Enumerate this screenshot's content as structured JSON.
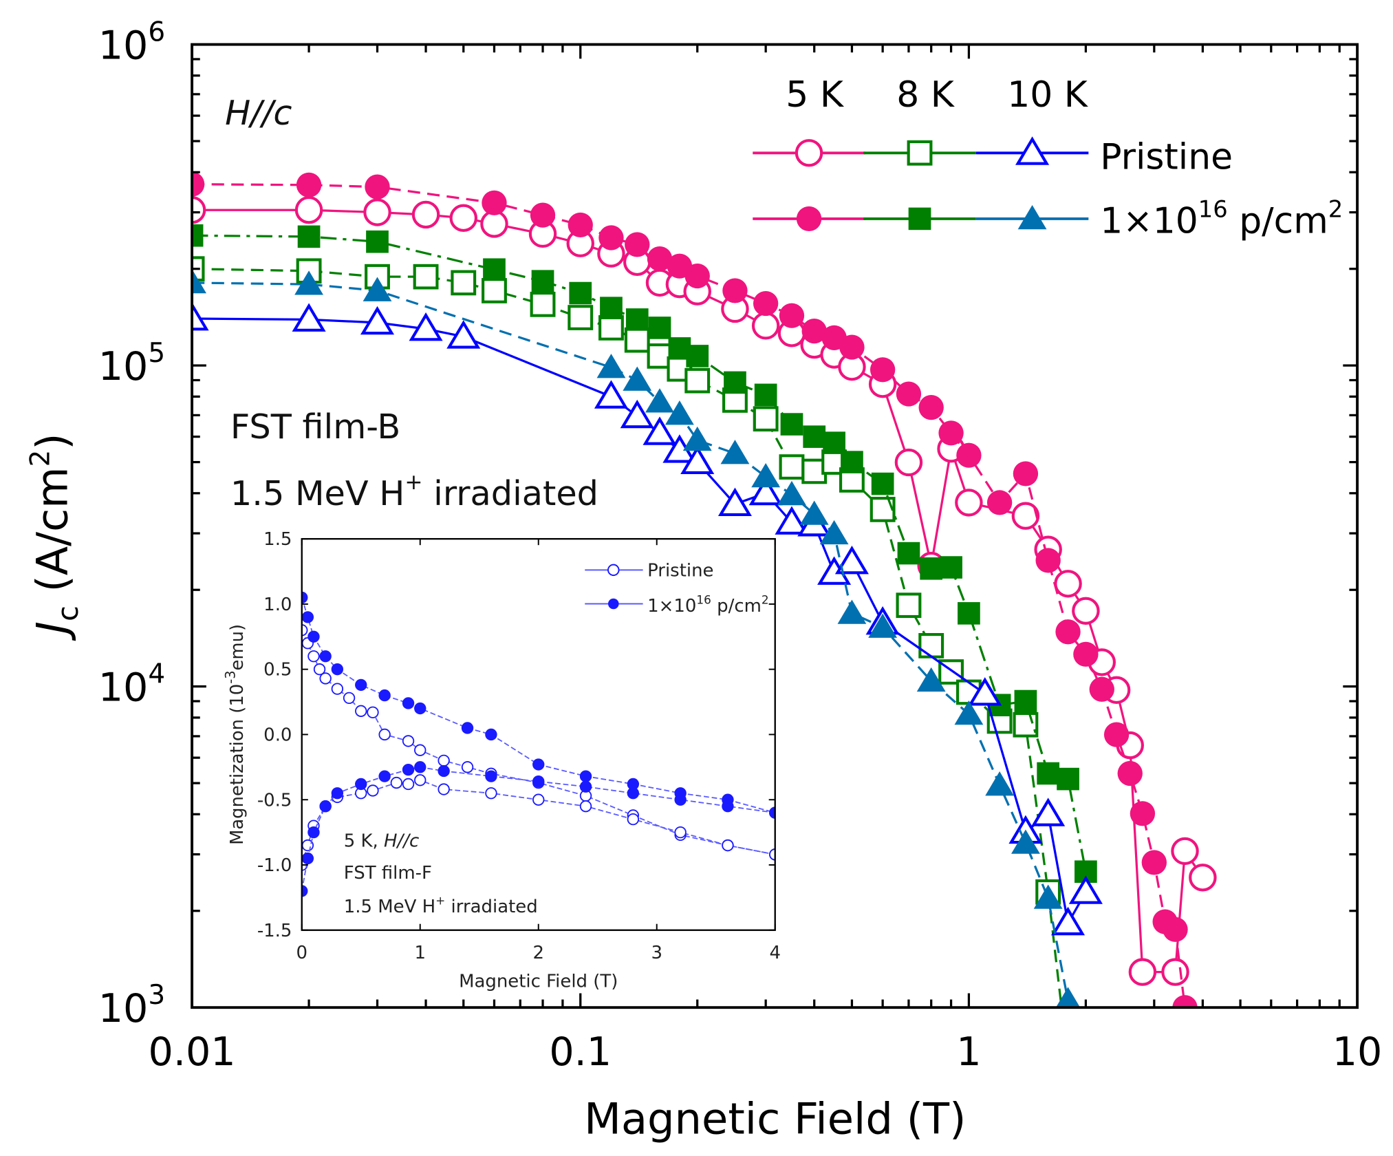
{
  "chart_data": {
    "type": "scatter",
    "main": {
      "xlabel": "Magnetic Field (T)",
      "ylabel_main": "J",
      "ylabel_sub": "c",
      "ylabel_unit": " (A/cm",
      "ylabel_unit_sup": "2",
      "ylabel_close": ")",
      "xscale": "log",
      "yscale": "log",
      "xlim": [
        0.01,
        10
      ],
      "ylim": [
        1000,
        1000000
      ],
      "xticks": [
        "0.01",
        "0.1",
        "1",
        "10"
      ],
      "yticks": [
        {
          "base": "10",
          "exp": "3"
        },
        {
          "base": "10",
          "exp": "4"
        },
        {
          "base": "10",
          "exp": "5"
        },
        {
          "base": "10",
          "exp": "6"
        }
      ],
      "legend": {
        "placement": "top-right",
        "columns": [
          "5 K",
          "8 K",
          "10 K"
        ],
        "rows": [
          {
            "label": "Pristine"
          },
          {
            "label_pre": "1×10",
            "label_sup": "16",
            "label_post": " p/cm",
            "label_sup2": "2"
          }
        ]
      },
      "annotations": {
        "field_dir": "H//c",
        "sample": "FST film-B",
        "irr_pre": "1.5 MeV H",
        "irr_sup": "+",
        "irr_post": " irradiated"
      },
      "series": [
        {
          "name": "5 K Pristine",
          "color": "#f0147f",
          "marker": "circle",
          "filled": false,
          "dash": "solid",
          "x": [
            0.01,
            0.02,
            0.03,
            0.04,
            0.05,
            0.06,
            0.08,
            0.1,
            0.12,
            0.14,
            0.16,
            0.18,
            0.2,
            0.25,
            0.3,
            0.35,
            0.4,
            0.45,
            0.5,
            0.6,
            0.7,
            0.8,
            0.9,
            1.0,
            1.4,
            1.6,
            1.8,
            2.0,
            2.2,
            2.4,
            2.6,
            2.8,
            3.4,
            3.6,
            4.0
          ],
          "y": [
            305000,
            305000,
            300000,
            295000,
            288000,
            276000,
            257000,
            240000,
            223000,
            210000,
            181000,
            179000,
            170000,
            150000,
            133000,
            126000,
            116000,
            108000,
            99000,
            87500,
            49900,
            23800,
            55000,
            37400,
            34000,
            26700,
            20900,
            17200,
            11900,
            9750,
            6560,
            1290,
            1290,
            3070,
            2540
          ]
        },
        {
          "name": "5 K 1×10^16 p/cm^2",
          "color": "#f0147f",
          "marker": "circle",
          "filled": true,
          "dash": "dashed",
          "x": [
            0.01,
            0.02,
            0.03,
            0.06,
            0.08,
            0.1,
            0.12,
            0.14,
            0.16,
            0.18,
            0.2,
            0.25,
            0.3,
            0.35,
            0.4,
            0.45,
            0.5,
            0.6,
            0.7,
            0.8,
            0.9,
            1.0,
            1.2,
            1.4,
            1.6,
            1.8,
            2.0,
            2.2,
            2.4,
            2.6,
            2.8,
            3.0,
            3.2,
            3.4,
            3.6
          ],
          "y": [
            367000,
            365000,
            360000,
            321000,
            294000,
            274000,
            250000,
            238000,
            215000,
            204000,
            190000,
            171000,
            156000,
            143000,
            128000,
            122000,
            114000,
            97000,
            81500,
            74000,
            61600,
            52500,
            37400,
            46000,
            24700,
            14800,
            12600,
            9800,
            7080,
            5360,
            4020,
            2830,
            1850,
            1750,
            1000
          ]
        },
        {
          "name": "8 K Pristine",
          "color": "#008000",
          "marker": "square",
          "filled": false,
          "dash": "dashed",
          "x": [
            0.01,
            0.02,
            0.03,
            0.04,
            0.05,
            0.06,
            0.08,
            0.1,
            0.12,
            0.14,
            0.16,
            0.18,
            0.2,
            0.25,
            0.3,
            0.35,
            0.4,
            0.45,
            0.5,
            0.6,
            0.7,
            0.8,
            0.9,
            1.0,
            1.2,
            1.4,
            1.6,
            1.75
          ],
          "y": [
            200000,
            197000,
            189000,
            189000,
            181000,
            171000,
            155000,
            141000,
            131000,
            120000,
            107000,
            97500,
            89700,
            78000,
            68200,
            48300,
            46800,
            50000,
            44000,
            35600,
            17900,
            13400,
            11100,
            9600,
            7800,
            7600,
            2290,
            900
          ]
        },
        {
          "name": "8 K 1×10^16 p/cm^2",
          "color": "#008000",
          "marker": "square",
          "filled": true,
          "dash": "dashdot",
          "x": [
            0.01,
            0.02,
            0.03,
            0.06,
            0.08,
            0.1,
            0.12,
            0.14,
            0.16,
            0.18,
            0.2,
            0.25,
            0.3,
            0.35,
            0.4,
            0.45,
            0.5,
            0.6,
            0.7,
            0.8,
            0.9,
            1.0,
            1.2,
            1.4,
            1.6,
            1.8,
            2.0
          ],
          "y": [
            254000,
            252000,
            243000,
            199000,
            183000,
            168000,
            151000,
            139000,
            131000,
            113000,
            107000,
            88500,
            81000,
            65600,
            60000,
            57400,
            50000,
            42800,
            26000,
            23300,
            23500,
            16900,
            8750,
            9000,
            5360,
            5150,
            2650
          ]
        },
        {
          "name": "10 K Pristine",
          "color": "#0000ff",
          "marker": "triangle",
          "filled": false,
          "dash": "solid",
          "x": [
            0.01,
            0.02,
            0.03,
            0.04,
            0.05,
            0.12,
            0.14,
            0.16,
            0.18,
            0.2,
            0.25,
            0.3,
            0.35,
            0.4,
            0.45,
            0.5,
            0.6,
            1.1,
            1.4,
            1.6,
            1.8,
            2.0
          ],
          "y": [
            140000,
            139000,
            136000,
            130000,
            123000,
            80000,
            69500,
            61600,
            54200,
            50000,
            37000,
            40000,
            32400,
            32000,
            22600,
            24400,
            15800,
            9500,
            3530,
            4000,
            1830,
            2290
          ]
        },
        {
          "name": "10 K 1×10^16 p/cm^2",
          "color": "#0070b0",
          "marker": "triangle",
          "filled": true,
          "dash": "dashed",
          "x": [
            0.01,
            0.02,
            0.03,
            0.12,
            0.14,
            0.16,
            0.18,
            0.2,
            0.25,
            0.3,
            0.35,
            0.4,
            0.45,
            0.5,
            0.6,
            0.8,
            1.0,
            1.2,
            1.4,
            1.6,
            1.8
          ],
          "y": [
            181000,
            179000,
            171000,
            98600,
            90000,
            77000,
            70500,
            58500,
            53200,
            45000,
            39600,
            34400,
            29900,
            16900,
            15300,
            10400,
            8200,
            4930,
            3250,
            2190,
            1050
          ]
        }
      ]
    },
    "inset": {
      "xlabel": "Magnetic Field (T)",
      "ylabel_pre": "Magnetization (10",
      "ylabel_sup": "-3",
      "ylabel_post": "emu)",
      "xlim": [
        0,
        4
      ],
      "ylim": [
        -1.5,
        1.5
      ],
      "xticks": [
        "0",
        "1",
        "2",
        "3",
        "4"
      ],
      "yticks": [
        "-1.5",
        "-1.0",
        "-0.5",
        "0.0",
        "0.5",
        "1.0",
        "1.5"
      ],
      "legend": {
        "placement": "top-right",
        "pristine": "Pristine",
        "irr_pre": "1×10",
        "irr_sup": "16",
        "irr_post": " p/cm",
        "irr_sup2": "2"
      },
      "annotations": {
        "l1_pre": "5 K, ",
        "l1_it": "H//c",
        "l2": "FST film-F",
        "l3_pre": "1.5 MeV H",
        "l3_sup": "+",
        "l3_post": " irradiated"
      },
      "series": [
        {
          "name": "Pristine upper",
          "color": "#1a1aff",
          "filled": false,
          "x": [
            0,
            0.05,
            0.1,
            0.15,
            0.2,
            0.3,
            0.4,
            0.5,
            0.6,
            0.7,
            0.9,
            1.0,
            1.2,
            1.4,
            1.6,
            2.0,
            2.4,
            2.8,
            3.2,
            3.6,
            4.0
          ],
          "y": [
            0.8,
            0.7,
            0.6,
            0.5,
            0.43,
            0.35,
            0.28,
            0.18,
            0.17,
            0.0,
            -0.05,
            -0.12,
            -0.2,
            -0.25,
            -0.3,
            -0.37,
            -0.47,
            -0.62,
            -0.77,
            -0.85,
            -0.92
          ]
        },
        {
          "name": "Pristine lower",
          "color": "#1a1aff",
          "filled": false,
          "x": [
            0,
            0.05,
            0.1,
            0.2,
            0.3,
            0.5,
            0.6,
            0.8,
            0.9,
            1.0,
            1.2,
            1.6,
            2.0,
            2.4,
            2.8,
            3.2,
            3.6,
            4.0
          ],
          "y": [
            -1.0,
            -0.85,
            -0.7,
            -0.55,
            -0.48,
            -0.45,
            -0.43,
            -0.37,
            -0.38,
            -0.35,
            -0.42,
            -0.45,
            -0.5,
            -0.55,
            -0.65,
            -0.75,
            -0.85,
            -0.92
          ]
        },
        {
          "name": "Irradiated upper",
          "color": "#1a1aff",
          "filled": true,
          "x": [
            0,
            0.05,
            0.1,
            0.2,
            0.3,
            0.5,
            0.7,
            0.9,
            1.0,
            1.4,
            1.6,
            2.0,
            2.4,
            2.8,
            3.2,
            3.6,
            4.0
          ],
          "y": [
            1.05,
            0.9,
            0.75,
            0.6,
            0.5,
            0.38,
            0.3,
            0.24,
            0.2,
            0.05,
            0.0,
            -0.23,
            -0.32,
            -0.38,
            -0.45,
            -0.5,
            -0.6
          ]
        },
        {
          "name": "Irradiated lower",
          "color": "#1a1aff",
          "filled": true,
          "x": [
            0,
            0.05,
            0.1,
            0.2,
            0.3,
            0.5,
            0.7,
            0.9,
            1.0,
            1.2,
            1.6,
            2.0,
            2.4,
            2.8,
            3.2,
            3.6,
            4.0
          ],
          "y": [
            -1.2,
            -0.95,
            -0.75,
            -0.55,
            -0.45,
            -0.38,
            -0.32,
            -0.27,
            -0.25,
            -0.28,
            -0.32,
            -0.36,
            -0.4,
            -0.45,
            -0.5,
            -0.55,
            -0.6
          ]
        }
      ]
    }
  }
}
